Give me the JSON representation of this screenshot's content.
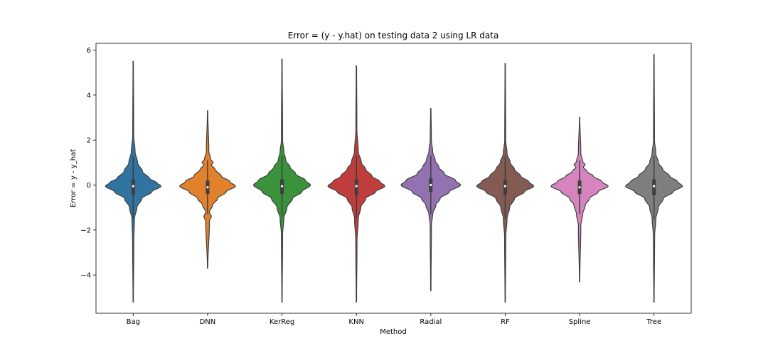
{
  "chart_data": {
    "type": "violin",
    "title": "Error = (y - y.hat) on testing data 2 using LR data",
    "xlabel": "Method",
    "ylabel": "Error = y - y_hat",
    "ylim": [
      -5.7,
      6.3
    ],
    "yticks": [
      -4,
      -2,
      0,
      2,
      4,
      6
    ],
    "ytick_labels": [
      "−4",
      "−2",
      "0",
      "2",
      "4",
      "6"
    ],
    "grid": false,
    "categories": [
      "Bag",
      "DNN",
      "KerReg",
      "KNN",
      "Radial",
      "RF",
      "Spline",
      "Tree"
    ],
    "colors": [
      "#3274a1",
      "#e1812c",
      "#3a923a",
      "#c03d3e",
      "#9372b2",
      "#845b53",
      "#d684bd",
      "#7f7f7f"
    ],
    "series": [
      {
        "name": "Bag",
        "min": -5.2,
        "max": 5.5,
        "q1": -0.45,
        "median": -0.05,
        "q3": 0.25,
        "whisker_low": -1.5,
        "whisker_high": 1.3,
        "profile": [
          [
            -5.2,
            0.003
          ],
          [
            -2.5,
            0.01
          ],
          [
            -1.5,
            0.02
          ],
          [
            -1,
            0.06
          ],
          [
            -0.6,
            0.14
          ],
          [
            -0.3,
            0.3
          ],
          [
            -0.05,
            0.45
          ],
          [
            0.1,
            0.38
          ],
          [
            0.3,
            0.26
          ],
          [
            0.6,
            0.15
          ],
          [
            1,
            0.07
          ],
          [
            1.5,
            0.03
          ],
          [
            2.2,
            0.008
          ],
          [
            5.5,
            0.003
          ]
        ]
      },
      {
        "name": "DNN",
        "min": -3.7,
        "max": 3.3,
        "q1": -0.4,
        "median": -0.1,
        "q3": 0.2,
        "whisker_low": -1.3,
        "whisker_high": 1.1,
        "profile": [
          [
            -3.7,
            0.003
          ],
          [
            -1.6,
            0.03
          ],
          [
            -1.4,
            0.06
          ],
          [
            -1.2,
            0.03
          ],
          [
            -0.9,
            0.08
          ],
          [
            -0.6,
            0.16
          ],
          [
            -0.3,
            0.3
          ],
          [
            -0.05,
            0.45
          ],
          [
            0.15,
            0.36
          ],
          [
            0.4,
            0.22
          ],
          [
            0.7,
            0.12
          ],
          [
            0.9,
            0.06
          ],
          [
            1.0,
            0.09
          ],
          [
            1.15,
            0.05
          ],
          [
            1.5,
            0.02
          ],
          [
            3.3,
            0.003
          ]
        ]
      },
      {
        "name": "KerReg",
        "min": -5.2,
        "max": 5.6,
        "q1": -0.4,
        "median": -0.05,
        "q3": 0.25,
        "whisker_low": -1.4,
        "whisker_high": 1.3,
        "profile": [
          [
            -5.2,
            0.003
          ],
          [
            -2.2,
            0.01
          ],
          [
            -1.5,
            0.03
          ],
          [
            -1,
            0.08
          ],
          [
            -0.6,
            0.17
          ],
          [
            -0.3,
            0.32
          ],
          [
            0,
            0.46
          ],
          [
            0.2,
            0.38
          ],
          [
            0.5,
            0.22
          ],
          [
            0.8,
            0.13
          ],
          [
            1.1,
            0.06
          ],
          [
            1.5,
            0.03
          ],
          [
            2,
            0.01
          ],
          [
            5.6,
            0.003
          ]
        ]
      },
      {
        "name": "KNN",
        "min": -5.2,
        "max": 5.3,
        "q1": -0.45,
        "median": -0.05,
        "q3": 0.25,
        "whisker_low": -1.5,
        "whisker_high": 1.3,
        "profile": [
          [
            -5.2,
            0.003
          ],
          [
            -2.5,
            0.01
          ],
          [
            -1.5,
            0.03
          ],
          [
            -1,
            0.07
          ],
          [
            -0.6,
            0.15
          ],
          [
            -0.3,
            0.31
          ],
          [
            -0.05,
            0.46
          ],
          [
            0.15,
            0.38
          ],
          [
            0.4,
            0.25
          ],
          [
            0.7,
            0.15
          ],
          [
            1,
            0.08
          ],
          [
            1.5,
            0.03
          ],
          [
            2.5,
            0.008
          ],
          [
            5.3,
            0.003
          ]
        ]
      },
      {
        "name": "Radial",
        "min": -4.7,
        "max": 3.4,
        "q1": -0.3,
        "median": 0.0,
        "q3": 0.3,
        "whisker_low": -1.3,
        "whisker_high": 1.3,
        "profile": [
          [
            -4.7,
            0.003
          ],
          [
            -1.8,
            0.01
          ],
          [
            -1.3,
            0.03
          ],
          [
            -0.9,
            0.08
          ],
          [
            -0.6,
            0.15
          ],
          [
            -0.3,
            0.3
          ],
          [
            0,
            0.48
          ],
          [
            0.2,
            0.4
          ],
          [
            0.5,
            0.22
          ],
          [
            0.8,
            0.13
          ],
          [
            1.1,
            0.07
          ],
          [
            1.5,
            0.03
          ],
          [
            2,
            0.01
          ],
          [
            3.4,
            0.003
          ]
        ]
      },
      {
        "name": "RF",
        "min": -5.2,
        "max": 5.4,
        "q1": -0.45,
        "median": -0.05,
        "q3": 0.25,
        "whisker_low": -1.5,
        "whisker_high": 1.3,
        "profile": [
          [
            -5.2,
            0.003
          ],
          [
            -2.3,
            0.01
          ],
          [
            -1.5,
            0.03
          ],
          [
            -1,
            0.07
          ],
          [
            -0.6,
            0.15
          ],
          [
            -0.3,
            0.31
          ],
          [
            -0.05,
            0.46
          ],
          [
            0.15,
            0.38
          ],
          [
            0.4,
            0.25
          ],
          [
            0.7,
            0.15
          ],
          [
            1,
            0.08
          ],
          [
            1.4,
            0.03
          ],
          [
            2,
            0.008
          ],
          [
            5.4,
            0.003
          ]
        ]
      },
      {
        "name": "Spline",
        "min": -4.3,
        "max": 3.0,
        "q1": -0.4,
        "median": -0.1,
        "q3": 0.2,
        "whisker_low": -1.3,
        "whisker_high": 1.1,
        "profile": [
          [
            -4.3,
            0.003
          ],
          [
            -1.8,
            0.02
          ],
          [
            -1.3,
            0.05
          ],
          [
            -0.9,
            0.09
          ],
          [
            -0.6,
            0.16
          ],
          [
            -0.3,
            0.3
          ],
          [
            -0.05,
            0.46
          ],
          [
            0.15,
            0.36
          ],
          [
            0.4,
            0.22
          ],
          [
            0.6,
            0.12
          ],
          [
            0.8,
            0.06
          ],
          [
            0.9,
            0.09
          ],
          [
            1.05,
            0.05
          ],
          [
            1.4,
            0.02
          ],
          [
            3.0,
            0.003
          ]
        ]
      },
      {
        "name": "Tree",
        "min": -5.2,
        "max": 5.8,
        "q1": -0.45,
        "median": -0.05,
        "q3": 0.25,
        "whisker_low": -1.5,
        "whisker_high": 1.3,
        "profile": [
          [
            -5.2,
            0.003
          ],
          [
            -2.3,
            0.01
          ],
          [
            -1.5,
            0.03
          ],
          [
            -1,
            0.07
          ],
          [
            -0.6,
            0.15
          ],
          [
            -0.3,
            0.31
          ],
          [
            -0.05,
            0.46
          ],
          [
            0.15,
            0.38
          ],
          [
            0.4,
            0.25
          ],
          [
            0.7,
            0.14
          ],
          [
            1,
            0.07
          ],
          [
            1.4,
            0.03
          ],
          [
            2,
            0.008
          ],
          [
            5.8,
            0.003
          ]
        ]
      }
    ]
  }
}
